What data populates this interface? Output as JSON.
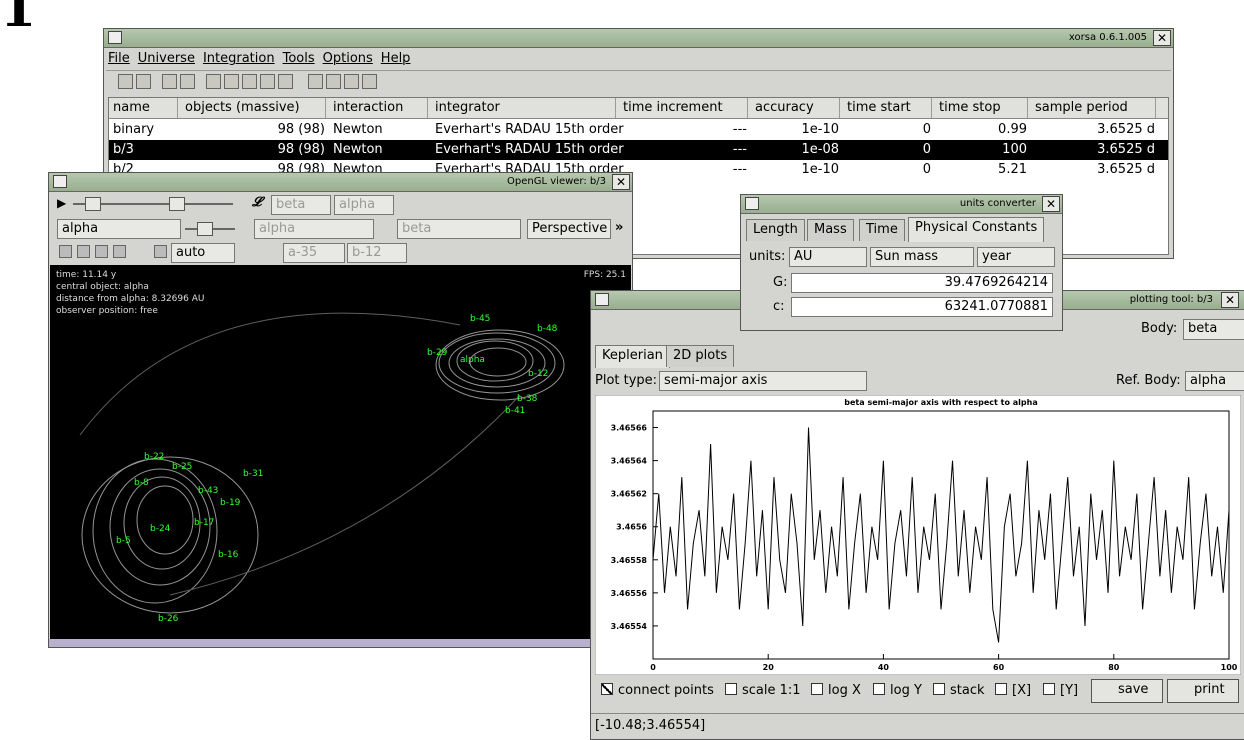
{
  "page_mark": "1",
  "main_window": {
    "title": "xorsa 0.6.1.005",
    "menu": [
      "File",
      "Universe",
      "Integration",
      "Tools",
      "Options",
      "Help"
    ],
    "table": {
      "columns": [
        "name",
        "objects (massive)",
        "interaction",
        "integrator",
        "time increment",
        "accuracy",
        "time start",
        "time stop",
        "sample period"
      ],
      "rows": [
        [
          "binary",
          "98 (98)",
          "Newton",
          "Everhart's RADAU 15th order",
          "---",
          "1e-10",
          "0",
          "0.99",
          "3.6525 d"
        ],
        [
          "b/3",
          "98 (98)",
          "Newton",
          "Everhart's RADAU 15th order",
          "---",
          "1e-08",
          "0",
          "100",
          "3.6525 d"
        ],
        [
          "b/2",
          "98 (98)",
          "Newton",
          "Everhart's RADAU 15th order",
          "---",
          "1e-10",
          "0",
          "5.21",
          "3.6525 d"
        ]
      ]
    }
  },
  "opengl_viewer": {
    "title": "OpenGL viewer: b/3",
    "row1": [
      "beta",
      "alpha"
    ],
    "row2": [
      "alpha",
      "alpha",
      "beta",
      "Perspective"
    ],
    "row3": [
      "auto",
      "a-35",
      "b-12"
    ],
    "info": [
      "time: 11.14  y",
      "central object: alpha",
      "distance from alpha: 8.32696 AU",
      "observer position: free"
    ],
    "fps": "FPS: 25.1",
    "labels": [
      "b-22",
      "b-25",
      "b-31",
      "b-8",
      "b-43",
      "b-19",
      "b-16",
      "b-26",
      "b-5",
      "b-17",
      "b-24",
      "b-41",
      "b-48",
      "b-12",
      "b-38",
      "alpha",
      "b-45",
      "b-29"
    ]
  },
  "units_converter": {
    "title": "units converter",
    "tabs": [
      "Length",
      "Mass",
      "Time",
      "Physical Constants"
    ],
    "units_label": "units:",
    "units": [
      "AU",
      "Sun mass",
      "year"
    ],
    "constants": [
      [
        "G:",
        "39.4769264214"
      ],
      [
        "c:",
        "63241.0770881"
      ]
    ]
  },
  "plotting_tool": {
    "title": "plotting tool: b/3",
    "body_label": "Body:",
    "body": "beta",
    "tabs": [
      "Keplerian",
      "2D plots"
    ],
    "plot_type_label": "Plot type:",
    "plot_type": "semi-major axis",
    "ref_body_label": "Ref. Body:",
    "ref_body": "alpha",
    "plot": {
      "type": "line",
      "title": "beta semi-major axis with respect to alpha",
      "color": "#000000",
      "xlim": [
        0,
        100
      ],
      "ylim": [
        3.46552,
        3.46567
      ],
      "xticks": [
        0,
        20,
        40,
        60,
        80,
        100
      ],
      "yticks": [
        3.46554,
        3.46556,
        3.46558,
        3.4656,
        3.46562,
        3.46564,
        3.46566
      ],
      "x": [
        0,
        1,
        2,
        3,
        4,
        5,
        6,
        7,
        8,
        9,
        10,
        11,
        12,
        13,
        14,
        15,
        16,
        17,
        18,
        19,
        20,
        21,
        22,
        23,
        24,
        25,
        26,
        27,
        28,
        29,
        30,
        31,
        32,
        33,
        34,
        35,
        36,
        37,
        38,
        39,
        40,
        41,
        42,
        43,
        44,
        45,
        46,
        47,
        48,
        49,
        50,
        51,
        52,
        53,
        54,
        55,
        56,
        57,
        58,
        59,
        60,
        61,
        62,
        63,
        64,
        65,
        66,
        67,
        68,
        69,
        70,
        71,
        72,
        73,
        74,
        75,
        76,
        77,
        78,
        79,
        80,
        81,
        82,
        83,
        84,
        85,
        86,
        87,
        88,
        89,
        90,
        91,
        92,
        93,
        94,
        95,
        96,
        97,
        98,
        99,
        100
      ],
      "values": [
        3.46558,
        3.46562,
        3.46556,
        3.4656,
        3.46557,
        3.46563,
        3.46555,
        3.46559,
        3.46561,
        3.46557,
        3.46565,
        3.46556,
        3.4656,
        3.46558,
        3.46562,
        3.46555,
        3.46559,
        3.46564,
        3.46557,
        3.46561,
        3.46555,
        3.46563,
        3.46558,
        3.46556,
        3.46562,
        3.46559,
        3.46554,
        3.46566,
        3.46558,
        3.46561,
        3.46556,
        3.4656,
        3.46557,
        3.46563,
        3.46555,
        3.46559,
        3.46562,
        3.46556,
        3.4656,
        3.46558,
        3.46564,
        3.46555,
        3.46559,
        3.46561,
        3.46557,
        3.46563,
        3.46556,
        3.4656,
        3.46558,
        3.46562,
        3.46555,
        3.46559,
        3.46564,
        3.46557,
        3.46561,
        3.46556,
        3.4656,
        3.46558,
        3.46563,
        3.46555,
        3.46553,
        3.4656,
        3.46562,
        3.46557,
        3.46559,
        3.46564,
        3.46556,
        3.46561,
        3.46558,
        3.46562,
        3.46555,
        3.46559,
        3.46563,
        3.46557,
        3.4656,
        3.46554,
        3.46562,
        3.46558,
        3.46561,
        3.46556,
        3.46564,
        3.46557,
        3.4656,
        3.46558,
        3.46562,
        3.46555,
        3.46559,
        3.46563,
        3.46557,
        3.46561,
        3.46556,
        3.4656,
        3.46558,
        3.46563,
        3.46555,
        3.46559,
        3.46562,
        3.46557,
        3.4656,
        3.46556,
        3.46561
      ]
    },
    "checkboxes": [
      "connect points",
      "scale 1:1",
      "log X",
      "log Y",
      "stack",
      "[X]",
      "[Y]"
    ],
    "buttons": [
      "save",
      "print"
    ],
    "status": "[-10.48;3.46554]"
  }
}
